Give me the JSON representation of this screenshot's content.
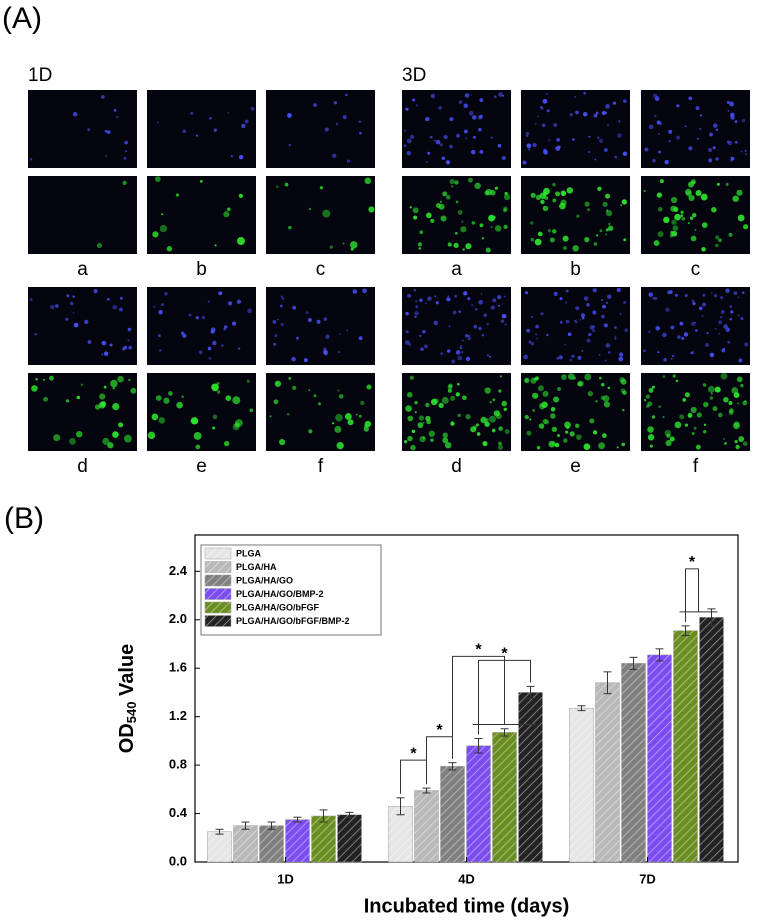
{
  "panel_a": {
    "label": "(A)",
    "groups": [
      {
        "title": "1D",
        "labels": [
          "a",
          "b",
          "c",
          "d",
          "e",
          "f"
        ]
      },
      {
        "title": "3D",
        "labels": [
          "a",
          "b",
          "c",
          "d",
          "e",
          "f"
        ]
      }
    ]
  },
  "chart_data": {
    "type": "bar",
    "panel_label": "(B)",
    "xlabel": "Incubated time (days)",
    "ylabel_parts": [
      "OD",
      "540",
      " Value"
    ],
    "categories": [
      "1D",
      "4D",
      "7D"
    ],
    "series": [
      {
        "name": "PLGA",
        "color": "#e6e6e6",
        "values": [
          0.25,
          0.46,
          1.27
        ],
        "errors": [
          0.02,
          0.07,
          0.02
        ]
      },
      {
        "name": "PLGA/HA",
        "color": "#b9b9b9",
        "values": [
          0.3,
          0.59,
          1.48
        ],
        "errors": [
          0.03,
          0.02,
          0.09
        ]
      },
      {
        "name": "PLGA/HA/GO",
        "color": "#808080",
        "values": [
          0.3,
          0.79,
          1.64
        ],
        "errors": [
          0.03,
          0.03,
          0.05
        ]
      },
      {
        "name": "PLGA/HA/GO/BMP-2",
        "color": "#7b4cf0",
        "values": [
          0.35,
          0.96,
          1.71
        ],
        "errors": [
          0.02,
          0.06,
          0.05
        ]
      },
      {
        "name": "PLGA/HA/GO/bFGF",
        "color": "#6b8e23",
        "values": [
          0.38,
          1.07,
          1.91
        ],
        "errors": [
          0.05,
          0.03,
          0.04
        ]
      },
      {
        "name": "PLGA/HA/GO/bFGF/BMP-2",
        "color": "#222222",
        "values": [
          0.39,
          1.4,
          2.02
        ],
        "errors": [
          0.02,
          0.05,
          0.07
        ]
      }
    ],
    "ylim": [
      0,
      2.7
    ],
    "yticks": [
      {
        "value": 0,
        "label": "0.0"
      },
      0.4,
      0.8,
      1.2,
      1.6,
      {
        "value": 2,
        "label": "2.0"
      },
      2.4
    ],
    "legend": "top-left",
    "annotations": [
      "*",
      "*",
      "*",
      "*",
      "*"
    ]
  }
}
